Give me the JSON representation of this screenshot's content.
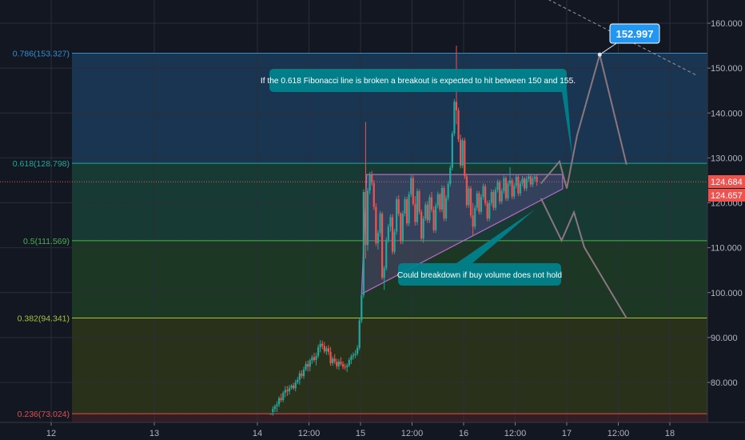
{
  "chart_data": {
    "type": "candlestick",
    "title": "",
    "xlabel": "",
    "ylabel": "",
    "ylim": [
      72,
      166
    ],
    "xlim": [
      12,
      18.25
    ],
    "grid": true,
    "y_ticks": [
      {
        "value": 160,
        "label": "160.000"
      },
      {
        "value": 150,
        "label": "150.000"
      },
      {
        "value": 140,
        "label": "140.000"
      },
      {
        "value": 130,
        "label": "130.000"
      },
      {
        "value": 120,
        "label": "120.000"
      },
      {
        "value": 110,
        "label": "110.000"
      },
      {
        "value": 100,
        "label": "100.000"
      },
      {
        "value": 90,
        "label": "90.000"
      },
      {
        "value": 80,
        "label": "80.000"
      }
    ],
    "x_ticks": [
      {
        "value": 12,
        "label": "12"
      },
      {
        "value": 13,
        "label": "13"
      },
      {
        "value": 14,
        "label": "14"
      },
      {
        "value": 14.5,
        "label": "12:00"
      },
      {
        "value": 15,
        "label": "15"
      },
      {
        "value": 15.5,
        "label": "12:00"
      },
      {
        "value": 16,
        "label": "16"
      },
      {
        "value": 16.5,
        "label": "12:00"
      },
      {
        "value": 17,
        "label": "17"
      },
      {
        "value": 17.5,
        "label": "12:00"
      },
      {
        "value": 18,
        "label": "18"
      }
    ],
    "fib_levels": [
      {
        "value": 153.327,
        "label": "0.786(153.327)",
        "color": "#2f8fd0",
        "fill_to": 128.798,
        "fill": "#1f4a72"
      },
      {
        "value": 128.798,
        "label": "0.618(128.798)",
        "color": "#1fa99a",
        "fill_to": 111.569,
        "fill": "#1b5142"
      },
      {
        "value": 111.569,
        "label": "0.5(111.569)",
        "color": "#4caf50",
        "fill_to": 94.341,
        "fill": "#234d25"
      },
      {
        "value": 94.341,
        "label": "0.382(94.341)",
        "color": "#a8c23a",
        "fill_to": 73.024,
        "fill": "#3a4317"
      },
      {
        "value": 73.024,
        "label": "0.236(73.024)",
        "color": "#e05050",
        "fill_to": null,
        "fill": null
      }
    ],
    "price_badges": [
      {
        "value": 124.684,
        "label": "124.684",
        "color": "#ef5350"
      },
      {
        "value": 124.657,
        "label": "124.657",
        "color": "#ef5350"
      }
    ],
    "callout_label": {
      "value": 152.997,
      "label": "152.997",
      "x": 17.32
    },
    "annotations": [
      {
        "text": "If the 0.618 Fibonacci line is broken a breakout is expected to hit between 150 and 155.",
        "x": 15.63,
        "y": 147.8
      },
      {
        "text": "Could breakdown if buy volume does not hold",
        "x": 16.55,
        "y": 103.9
      }
    ],
    "triangle": [
      [
        15.01,
        99.7
      ],
      [
        15.06,
        126.3
      ],
      [
        16.96,
        126.3
      ],
      [
        16.96,
        123.1
      ]
    ],
    "projection_up": [
      [
        16.75,
        124.3
      ],
      [
        16.93,
        129.2
      ],
      [
        17.0,
        123.2
      ],
      [
        17.1,
        135
      ],
      [
        17.32,
        153
      ],
      [
        17.58,
        128.5
      ]
    ],
    "projection_down": [
      [
        16.75,
        121.0
      ],
      [
        16.95,
        111.6
      ],
      [
        17.07,
        117.9
      ],
      [
        17.17,
        110.1
      ],
      [
        17.58,
        94.3
      ]
    ],
    "trend_dashed": [
      [
        15.95,
        175.5
      ],
      [
        18.25,
        148.5
      ]
    ],
    "candles": [
      [
        14.13,
        73.0,
        73.0,
        73.0,
        73.0
      ],
      [
        14.15,
        73.4,
        74.7,
        72.6,
        74.1
      ],
      [
        14.17,
        74.1,
        75.1,
        73.4,
        74.7
      ],
      [
        14.19,
        74.7,
        75.8,
        73.4,
        75.1
      ],
      [
        14.21,
        75.1,
        76.9,
        74.5,
        76.5
      ],
      [
        14.23,
        76.5,
        77.5,
        75.6,
        76.1
      ],
      [
        14.25,
        76.1,
        78.1,
        75.6,
        77.7
      ],
      [
        14.27,
        77.7,
        79.2,
        76.7,
        78.3
      ],
      [
        14.29,
        78.3,
        79.2,
        77.0,
        78.0
      ],
      [
        14.31,
        78.0,
        79.4,
        77.3,
        78.8
      ],
      [
        14.33,
        78.8,
        79.6,
        78.4,
        79.3
      ],
      [
        14.35,
        79.3,
        79.9,
        78.3,
        78.7
      ],
      [
        14.37,
        78.7,
        80.6,
        78.0,
        80.0
      ],
      [
        14.39,
        80.0,
        81.2,
        79.6,
        80.6
      ],
      [
        14.41,
        80.6,
        82.6,
        79.5,
        82.0
      ],
      [
        14.43,
        82.0,
        82.7,
        80.9,
        81.4
      ],
      [
        14.45,
        81.4,
        83.5,
        80.8,
        82.9
      ],
      [
        14.47,
        82.9,
        84.7,
        82.5,
        84.1
      ],
      [
        14.49,
        84.1,
        84.9,
        82.4,
        83.5
      ],
      [
        14.51,
        83.5,
        85.3,
        82.5,
        84.9
      ],
      [
        14.53,
        84.9,
        86.1,
        84.1,
        85.6
      ],
      [
        14.55,
        85.6,
        86.6,
        84.5,
        85.0
      ],
      [
        14.57,
        85.0,
        86.6,
        83.8,
        85.9
      ],
      [
        14.59,
        85.9,
        88.4,
        85.4,
        87.8
      ],
      [
        14.61,
        87.8,
        89.4,
        86.7,
        88.6
      ],
      [
        14.63,
        88.6,
        89.3,
        87.4,
        88.1
      ],
      [
        14.65,
        88.1,
        89.0,
        86.5,
        86.9
      ],
      [
        14.67,
        86.9,
        88.1,
        86.1,
        87.6
      ],
      [
        14.69,
        87.6,
        88.3,
        86.1,
        86.8
      ],
      [
        14.71,
        86.8,
        87.9,
        83.7,
        84.3
      ],
      [
        14.73,
        84.3,
        85.8,
        83.7,
        85.3
      ],
      [
        14.75,
        85.3,
        86.3,
        84.1,
        84.6
      ],
      [
        14.77,
        84.6,
        85.3,
        83.0,
        83.6
      ],
      [
        14.79,
        83.6,
        85.2,
        82.8,
        84.6
      ],
      [
        14.81,
        84.6,
        85.6,
        83.7,
        84.1
      ],
      [
        14.83,
        84.1,
        84.7,
        82.9,
        83.5
      ],
      [
        14.85,
        83.5,
        84.2,
        82.8,
        83.4
      ],
      [
        14.87,
        83.4,
        84.2,
        82.3,
        83.8
      ],
      [
        14.89,
        83.8,
        85.5,
        83.4,
        85.0
      ],
      [
        14.91,
        85.0,
        86.3,
        84.1,
        85.8
      ],
      [
        14.93,
        85.8,
        86.7,
        85.1,
        86.1
      ],
      [
        14.95,
        86.1,
        87.2,
        85.4,
        86.4
      ],
      [
        14.97,
        86.4,
        88.3,
        85.9,
        87.7
      ],
      [
        14.99,
        87.7,
        94.3,
        87.2,
        93.8
      ],
      [
        15.01,
        93.8,
        99.9,
        93.2,
        99.4
      ],
      [
        15.03,
        99.4,
        123.0,
        98.8,
        122.4
      ],
      [
        15.05,
        122.4,
        138.0,
        107.6,
        110.6
      ],
      [
        15.07,
        110.6,
        123.3,
        109.3,
        122.7
      ],
      [
        15.09,
        122.7,
        126.9,
        121.9,
        126.3
      ],
      [
        15.11,
        126.3,
        127.1,
        123.8,
        124.4
      ],
      [
        15.13,
        124.4,
        125.1,
        118.4,
        119.1
      ],
      [
        15.15,
        119.1,
        119.9,
        110.4,
        111.0
      ],
      [
        15.17,
        111.0,
        113.9,
        109.6,
        113.3
      ],
      [
        15.19,
        113.3,
        118.2,
        112.5,
        117.6
      ],
      [
        15.21,
        117.6,
        118.0,
        102.9,
        103.3
      ],
      [
        15.23,
        103.3,
        106.0,
        100.6,
        105.4
      ],
      [
        15.25,
        105.4,
        112.3,
        104.9,
        111.7
      ],
      [
        15.27,
        111.7,
        115.3,
        111.1,
        114.7
      ],
      [
        15.29,
        114.7,
        117.4,
        113.6,
        116.8
      ],
      [
        15.31,
        116.8,
        117.5,
        108.5,
        109.1
      ],
      [
        15.33,
        109.1,
        114.2,
        108.6,
        113.6
      ],
      [
        15.35,
        113.6,
        121.4,
        112.9,
        120.8
      ],
      [
        15.37,
        120.8,
        121.7,
        117.0,
        117.6
      ],
      [
        15.39,
        117.6,
        118.0,
        110.8,
        111.4
      ],
      [
        15.41,
        111.4,
        118.2,
        110.8,
        117.6
      ],
      [
        15.43,
        117.6,
        121.4,
        117.0,
        120.8
      ],
      [
        15.45,
        120.8,
        121.3,
        114.8,
        115.4
      ],
      [
        15.47,
        115.4,
        122.5,
        114.8,
        121.9
      ],
      [
        15.49,
        121.9,
        126.1,
        121.3,
        125.5
      ],
      [
        15.51,
        125.5,
        126.1,
        119.3,
        119.7
      ],
      [
        15.53,
        119.7,
        121.5,
        114.9,
        115.7
      ],
      [
        15.55,
        115.7,
        123.2,
        115.0,
        122.6
      ],
      [
        15.57,
        122.6,
        123.0,
        117.4,
        118.0
      ],
      [
        15.59,
        118.0,
        118.5,
        111.4,
        112.0
      ],
      [
        15.61,
        112.0,
        117.1,
        111.1,
        116.5
      ],
      [
        15.63,
        116.5,
        120.2,
        116.0,
        119.6
      ],
      [
        15.65,
        119.6,
        120.4,
        115.5,
        116.1
      ],
      [
        15.67,
        116.1,
        121.8,
        115.5,
        121.2
      ],
      [
        15.69,
        121.2,
        122.4,
        117.9,
        118.5
      ],
      [
        15.71,
        118.5,
        119.2,
        113.3,
        113.9
      ],
      [
        15.73,
        113.9,
        120.0,
        113.3,
        119.4
      ],
      [
        15.75,
        119.4,
        122.5,
        118.8,
        121.9
      ],
      [
        15.77,
        121.9,
        122.2,
        117.9,
        118.5
      ],
      [
        15.79,
        118.5,
        123.9,
        117.9,
        123.3
      ],
      [
        15.81,
        123.3,
        123.8,
        115.9,
        116.5
      ],
      [
        15.83,
        116.5,
        121.7,
        115.9,
        121.1
      ],
      [
        15.85,
        121.1,
        124.8,
        120.5,
        124.2
      ],
      [
        15.87,
        124.2,
        128.4,
        123.6,
        127.8
      ],
      [
        15.89,
        127.8,
        136.0,
        127.2,
        135.4
      ],
      [
        15.91,
        135.4,
        143.1,
        134.8,
        142.5
      ],
      [
        15.93,
        142.5,
        155.0,
        137.5,
        140.6
      ],
      [
        15.95,
        140.6,
        141.2,
        133.5,
        134.1
      ],
      [
        15.97,
        134.1,
        135.2,
        127.7,
        128.3
      ],
      [
        15.99,
        128.3,
        134.5,
        127.7,
        133.9
      ],
      [
        16.01,
        133.9,
        134.5,
        125.3,
        125.9
      ],
      [
        16.03,
        125.9,
        126.5,
        118.9,
        119.5
      ],
      [
        16.05,
        119.5,
        123.8,
        118.9,
        123.2
      ],
      [
        16.07,
        123.2,
        123.7,
        116.6,
        117.2
      ],
      [
        16.09,
        117.2,
        120.0,
        112.5,
        114.7
      ],
      [
        16.11,
        114.7,
        119.5,
        114.1,
        118.9
      ],
      [
        16.13,
        118.9,
        122.7,
        118.3,
        122.1
      ],
      [
        16.15,
        122.1,
        122.6,
        117.4,
        118.0
      ],
      [
        16.17,
        118.0,
        121.9,
        117.4,
        121.3
      ],
      [
        16.19,
        121.3,
        124.3,
        120.7,
        123.7
      ],
      [
        16.21,
        123.7,
        124.2,
        119.3,
        119.9
      ],
      [
        16.23,
        119.9,
        120.5,
        115.9,
        116.5
      ],
      [
        16.25,
        116.5,
        120.6,
        115.9,
        120.0
      ],
      [
        16.27,
        120.0,
        123.0,
        119.4,
        122.4
      ],
      [
        16.29,
        122.4,
        122.9,
        118.3,
        118.9
      ],
      [
        16.31,
        118.9,
        123.5,
        118.3,
        122.9
      ],
      [
        16.33,
        122.9,
        125.2,
        122.3,
        124.6
      ],
      [
        16.35,
        124.6,
        125.1,
        119.7,
        120.3
      ],
      [
        16.37,
        120.3,
        123.2,
        119.7,
        122.6
      ],
      [
        16.39,
        122.6,
        126.1,
        122.0,
        125.5
      ],
      [
        16.41,
        125.5,
        125.9,
        120.4,
        121.0
      ],
      [
        16.43,
        121.0,
        124.9,
        120.4,
        124.3
      ],
      [
        16.45,
        124.3,
        127.9,
        123.7,
        125.0
      ],
      [
        16.47,
        125.0,
        125.5,
        120.8,
        121.4
      ],
      [
        16.49,
        121.4,
        124.4,
        120.8,
        123.8
      ],
      [
        16.51,
        123.8,
        126.4,
        123.2,
        125.8
      ],
      [
        16.53,
        125.8,
        126.3,
        121.5,
        122.1
      ],
      [
        16.55,
        122.1,
        124.9,
        121.5,
        124.3
      ],
      [
        16.57,
        124.3,
        126.0,
        123.7,
        125.4
      ],
      [
        16.59,
        125.4,
        125.8,
        122.6,
        123.2
      ],
      [
        16.61,
        123.2,
        125.9,
        122.6,
        125.3
      ],
      [
        16.63,
        125.3,
        126.5,
        124.7,
        125.9
      ],
      [
        16.65,
        125.9,
        126.3,
        123.5,
        124.1
      ],
      [
        16.67,
        124.1,
        126.0,
        123.5,
        125.4
      ],
      [
        16.69,
        125.4,
        126.4,
        124.8,
        125.8
      ],
      [
        16.71,
        125.8,
        126.2,
        123.8,
        124.7
      ]
    ]
  }
}
